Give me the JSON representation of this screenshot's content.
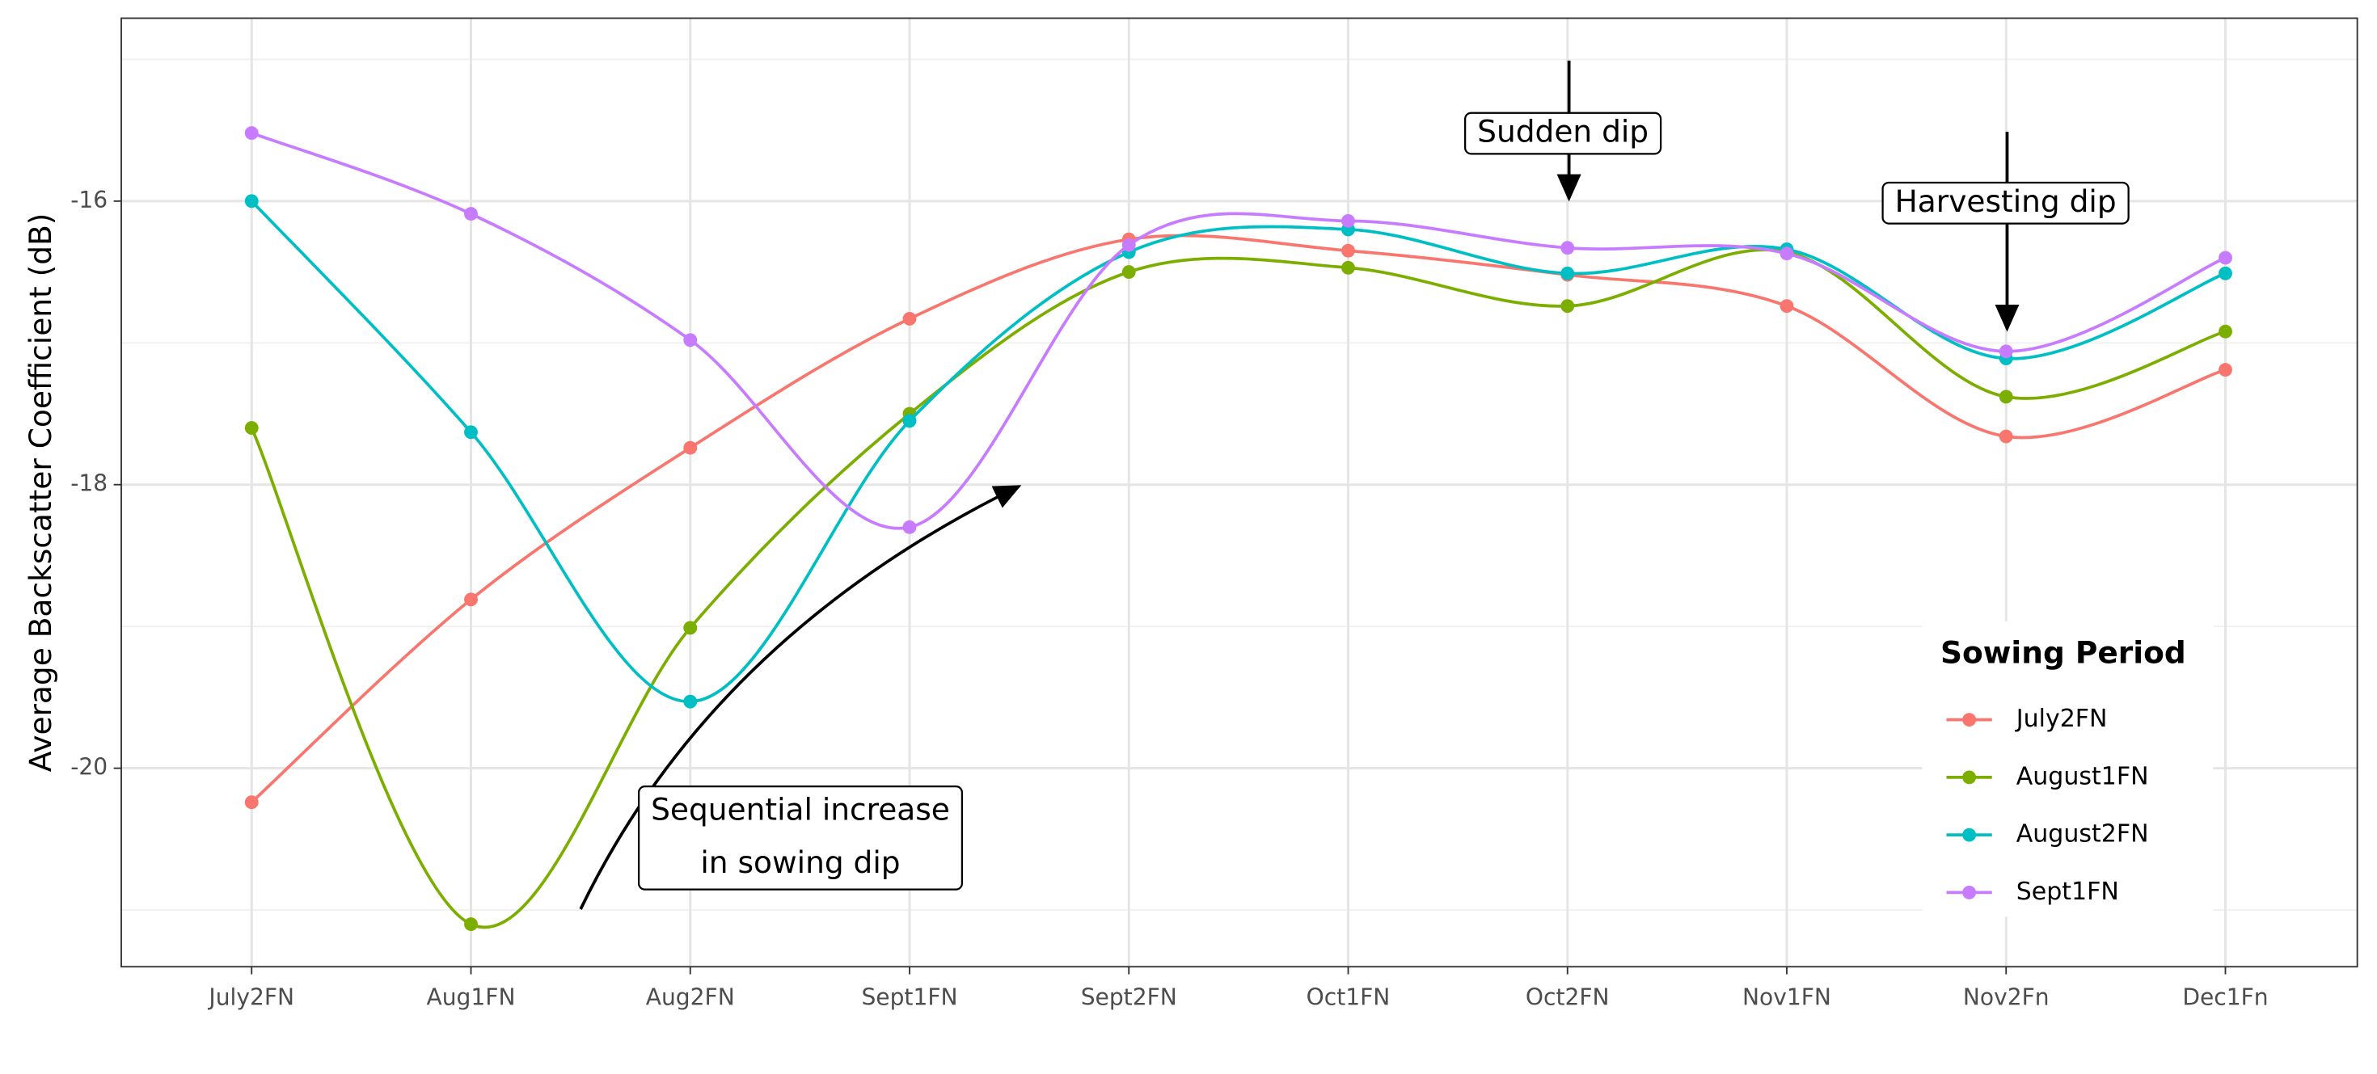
{
  "chart_data": {
    "type": "line",
    "y_label": "Average Backscatter Coefficient (dB)",
    "categories": [
      "July2FN",
      "Aug1FN",
      "Aug2FN",
      "Sept1FN",
      "Sept2FN",
      "Oct1FN",
      "Oct2FN",
      "Nov1FN",
      "Nov2Fn",
      "Dec1Fn"
    ],
    "series": [
      {
        "name": "July2FN",
        "color": "#F8766D",
        "values": [
          -20.24,
          -18.81,
          -17.74,
          -16.83,
          -16.27,
          -16.35,
          -16.52,
          -16.74,
          -17.66,
          -17.19
        ]
      },
      {
        "name": "August1FN",
        "color": "#7CAE00",
        "values": [
          -17.6,
          -21.1,
          -19.01,
          -17.5,
          -16.5,
          -16.47,
          -16.74,
          -16.36,
          -17.38,
          -16.92
        ]
      },
      {
        "name": "August2FN",
        "color": "#00BFC4",
        "values": [
          -16.0,
          -17.63,
          -19.53,
          -17.55,
          -16.36,
          -16.2,
          -16.51,
          -16.34,
          -17.11,
          -16.51
        ]
      },
      {
        "name": "Sept1FN",
        "color": "#C77CFF",
        "values": [
          -15.52,
          -16.09,
          -16.98,
          -18.3,
          -16.31,
          -16.14,
          -16.33,
          -16.37,
          -17.06,
          -16.4
        ]
      }
    ],
    "ylim": [
      -21.4,
      -14.71
    ],
    "yticks": [
      -20,
      -18,
      -16
    ],
    "minor_yticks": [
      -21,
      -19,
      -17,
      -15
    ],
    "grid": true,
    "legend_title": "Sowing Period",
    "legend_position": "inside-bottom-right",
    "annotations": [
      {
        "lines": [
          "Sudden dip"
        ]
      },
      {
        "lines": [
          "Harvesting dip"
        ]
      },
      {
        "lines": [
          "Sequential increase",
          "in sowing dip"
        ]
      }
    ]
  }
}
